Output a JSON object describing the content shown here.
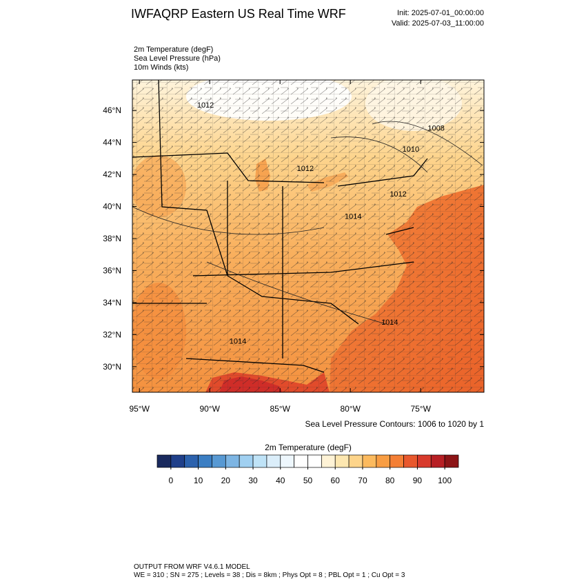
{
  "header": {
    "title": "IWFAQRP Eastern US Real Time WRF",
    "init": "Init: 2025-07-01_00:00:00",
    "valid": "Valid: 2025-07-03_11:00:00"
  },
  "fields": [
    "2m Temperature   (degF)",
    "Sea Level Pressure   (hPa)",
    "10m Winds   (kts)"
  ],
  "map": {
    "xlim": [
      -95.5,
      -70.5
    ],
    "ylim": [
      28.4,
      47.9
    ],
    "yticks": [
      {
        "value": 46,
        "label": "46°N"
      },
      {
        "value": 44,
        "label": "44°N"
      },
      {
        "value": 42,
        "label": "42°N"
      },
      {
        "value": 40,
        "label": "40°N"
      },
      {
        "value": 38,
        "label": "38°N"
      },
      {
        "value": 36,
        "label": "36°N"
      },
      {
        "value": 34,
        "label": "34°N"
      },
      {
        "value": 32,
        "label": "32°N"
      },
      {
        "value": 30,
        "label": "30°N"
      }
    ],
    "xticks": [
      {
        "value": -95,
        "label": "95°W"
      },
      {
        "value": -90,
        "label": "90°W"
      },
      {
        "value": -85,
        "label": "85°W"
      },
      {
        "value": -80,
        "label": "80°W"
      },
      {
        "value": -75,
        "label": "75°W"
      }
    ],
    "contour_labels": [
      {
        "text": "1012",
        "lon": -90.3,
        "lat": 46.35
      },
      {
        "text": "1008",
        "lon": -73.9,
        "lat": 44.9
      },
      {
        "text": "1010",
        "lon": -75.7,
        "lat": 43.6
      },
      {
        "text": "1012",
        "lon": -83.2,
        "lat": 42.4
      },
      {
        "text": "1012",
        "lon": -76.6,
        "lat": 40.8
      },
      {
        "text": "1014",
        "lon": -79.8,
        "lat": 39.4
      },
      {
        "text": "1014",
        "lon": -77.2,
        "lat": 32.8
      },
      {
        "text": "1014",
        "lon": -88.0,
        "lat": 31.6
      }
    ],
    "contour_note": "Sea Level Pressure Contours: 1006 to 1020 by 1"
  },
  "colorbar": {
    "title": "2m Temperature  (degF)",
    "range": [
      -5,
      105
    ],
    "ticks": [
      0,
      10,
      20,
      30,
      40,
      50,
      60,
      70,
      80,
      90,
      100
    ],
    "colors": [
      "#1a2a5e",
      "#20408a",
      "#2c62ad",
      "#3b7ec3",
      "#5899d3",
      "#7db5e3",
      "#a0d0f1",
      "#bfe3f7",
      "#dbeefa",
      "#eef7fd",
      "#ffffff",
      "#ffffff",
      "#fff3d6",
      "#fde7b0",
      "#fdd48a",
      "#fcba5e",
      "#f89d43",
      "#f47f35",
      "#e8582d",
      "#d83a2c",
      "#b71f24",
      "#8c1416"
    ]
  },
  "footer": {
    "line1": "OUTPUT FROM WRF V4.6.1 MODEL",
    "line2": "WE = 310 ; SN = 275 ; Levels = 38 ; Dis = 8km ; Phys Opt = 8 ; PBL Opt = 1 ; Cu Opt = 3"
  }
}
